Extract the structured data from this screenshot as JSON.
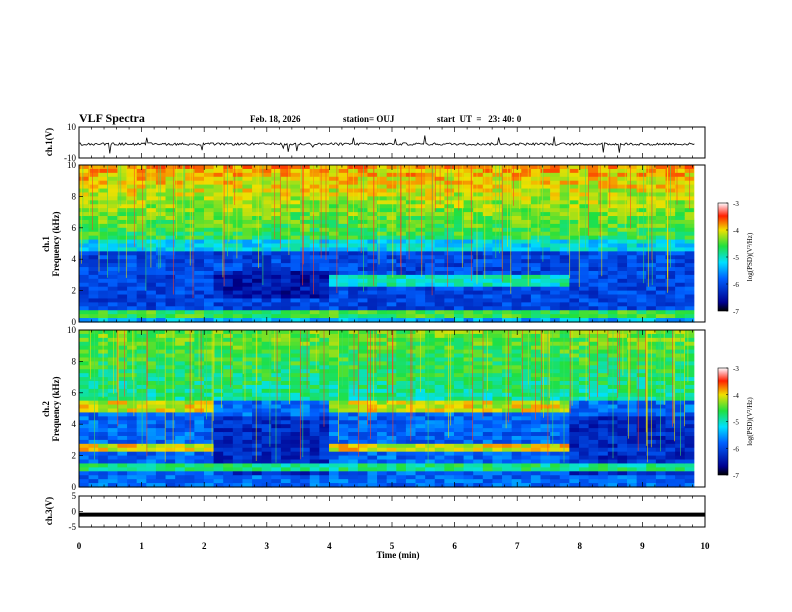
{
  "header": {
    "title": "VLF Spectra",
    "date": "Feb. 18, 2026",
    "station": "station= OUJ",
    "start_ut": "start  UT  =   23: 40: 0"
  },
  "chart_data": [
    {
      "type": "line",
      "name": "ch1-waveform",
      "ylabel": "ch.1(V)",
      "yticks": [
        "10",
        "-10"
      ],
      "ylim": [
        -10,
        10
      ],
      "xlim": [
        0,
        10
      ],
      "description_values": "noisy waveform near -1 V with spikes"
    },
    {
      "type": "heatmap",
      "name": "ch1-spectrogram",
      "ylabel_line1": "ch.1",
      "ylabel_line2": "Frequency  (kHz)",
      "yticks": [
        "0",
        "2",
        "4",
        "6",
        "8",
        "10"
      ],
      "ylim": [
        0,
        10
      ],
      "xlim": [
        0,
        10
      ],
      "colorbar": {
        "label": "log(PSD)(V²/Hz)",
        "ticks": [
          "-3",
          "-4",
          "-5",
          "-6",
          "-7"
        ],
        "range": [
          -7,
          -3
        ]
      }
    },
    {
      "type": "heatmap",
      "name": "ch2-spectrogram",
      "ylabel_line1": "ch.2",
      "ylabel_line2": "Frequency  (kHz)",
      "yticks": [
        "0",
        "2",
        "4",
        "6",
        "8",
        "10"
      ],
      "ylim": [
        0,
        10
      ],
      "xlim": [
        0,
        10
      ],
      "colorbar": {
        "label": "log(PSD)(V²/Hz)",
        "ticks": [
          "-3",
          "-4",
          "-5",
          "-6",
          "-7"
        ],
        "range": [
          -7,
          -3
        ]
      }
    },
    {
      "type": "line",
      "name": "ch3-waveform",
      "ylabel": "ch.3(V)",
      "yticks": [
        "5",
        "0",
        "-5"
      ],
      "ylim": [
        -5,
        5
      ],
      "xlim": [
        0,
        10
      ],
      "constant_value": -1
    }
  ],
  "xaxis": {
    "label": "Time  (min)",
    "ticks": [
      "0",
      "1",
      "2",
      "3",
      "4",
      "5",
      "6",
      "7",
      "8",
      "9",
      "10"
    ]
  }
}
